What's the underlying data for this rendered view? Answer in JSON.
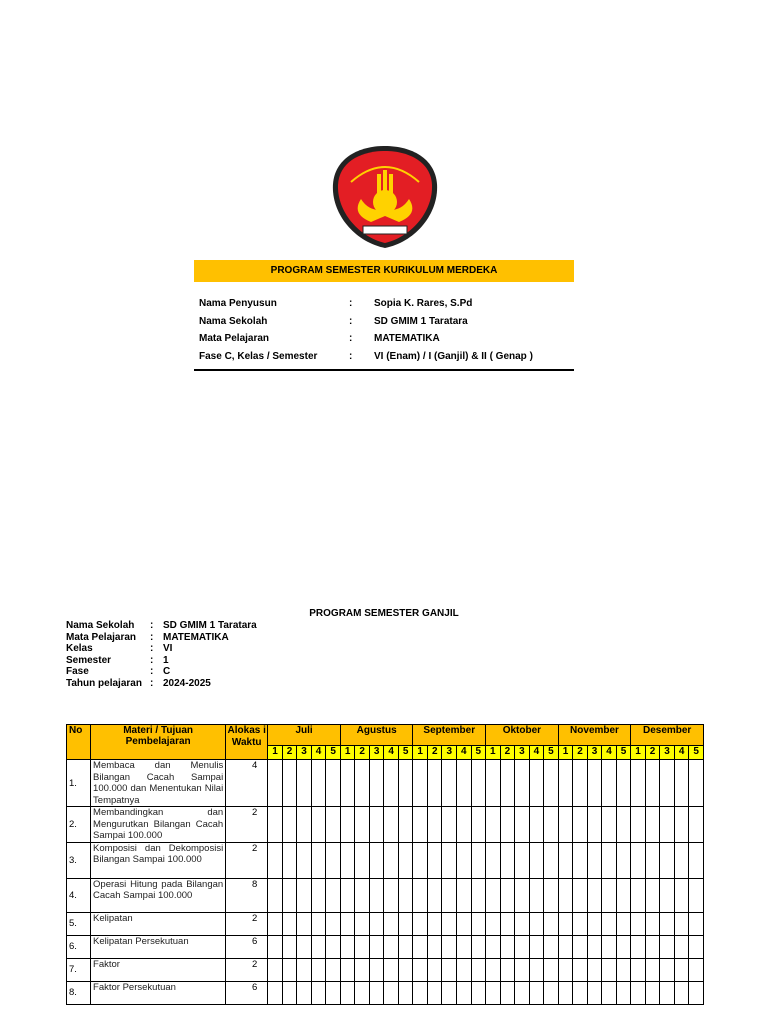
{
  "logo": {
    "text": "TUT WURI HANDAYANI",
    "colors": {
      "red": "#E31E24",
      "yellow": "#FFD200",
      "black": "#1a1a1a"
    }
  },
  "cover": {
    "title": "PROGRAM SEMESTER KURIKULUM MERDEKA",
    "fields": [
      {
        "label": "Nama Penyusun",
        "sep": ":",
        "value": "Sopia K. Rares, S.Pd"
      },
      {
        "label": "Nama Sekolah",
        "sep": ":",
        "value": "SD GMIM 1 Taratara"
      },
      {
        "label": "Mata Pelajaran",
        "sep": ":",
        "value": "MATEMATIKA"
      },
      {
        "label": "Fase C, Kelas / Semester",
        "sep": ":",
        "value": "VI (Enam)  / I (Ganjil) & II ( Genap )"
      }
    ]
  },
  "section": {
    "title": "PROGRAM SEMESTER GANJIL",
    "fields": [
      {
        "label": "Nama Sekolah",
        "sep": ":",
        "value": "SD GMIM 1 Taratara"
      },
      {
        "label": "Mata Pelajaran",
        "sep": ":",
        "value": "MATEMATIKA"
      },
      {
        "label": "Kelas",
        "sep": ":",
        "value": "VI"
      },
      {
        "label": "Semester",
        "sep": ":",
        "value": "1"
      },
      {
        "label": "Fase",
        "sep": ":",
        "value": "C"
      },
      {
        "label": "Tahun pelajaran",
        "sep": ":",
        "value": "2024-2025"
      }
    ]
  },
  "table": {
    "headers": {
      "no": "No",
      "materi": "Materi / Tujuan Pembelajaran",
      "alokasi": "Alokas i Waktu"
    },
    "months": [
      "Juli",
      "Agustus",
      "September",
      "Oktober",
      "November",
      "Desember"
    ],
    "weeks": [
      "1",
      "2",
      "3",
      "4",
      "5"
    ],
    "rows": [
      {
        "no": "1.",
        "materi": "Membaca dan Menulis Bilangan Cacah Sampai 100.000 dan Menentukan Nilai Tempatnya",
        "alokasi": "4"
      },
      {
        "no": "2.",
        "materi": "Membandingkan dan Mengurutkan Bilangan Cacah Sampai 100.000",
        "alokasi": "2"
      },
      {
        "no": "3.",
        "materi": "Komposisi dan Dekomposisi Bilangan Sampai 100.000",
        "alokasi": "2"
      },
      {
        "no": "4.",
        "materi": "Operasi Hitung pada Bilangan Cacah Sampai 100.000",
        "alokasi": "8"
      },
      {
        "no": "5.",
        "materi": "Kelipatan",
        "alokasi": "2"
      },
      {
        "no": "6.",
        "materi": "Kelipatan Persekutuan",
        "alokasi": "6"
      },
      {
        "no": "7.",
        "materi": "Faktor",
        "alokasi": "2"
      },
      {
        "no": "8.",
        "materi": "Faktor Persekutuan",
        "alokasi": "6"
      }
    ],
    "colors": {
      "header": "#FFC000",
      "weeks": "#FFFF00"
    }
  }
}
